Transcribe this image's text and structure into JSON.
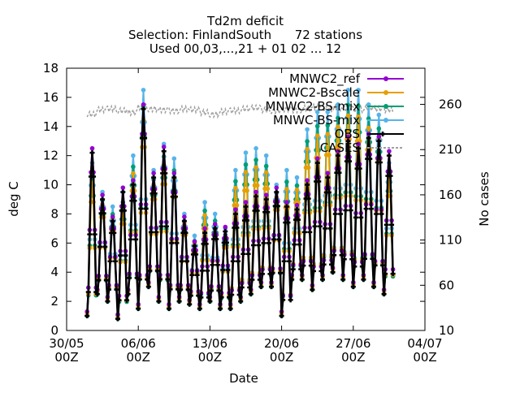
{
  "title_lines": [
    "Td2m deficit",
    "Selection: FinlandSouth      72 stations",
    "Used 00,03,...,21 + 01 02 ... 12"
  ],
  "chart_data": {
    "type": "line",
    "title": "Td2m deficit",
    "xlabel": "Date",
    "ylabel": "deg C",
    "y2label": "No cases",
    "xlim": [
      "2024-05-30T00:00",
      "2024-07-04T00:00"
    ],
    "ylim": [
      0,
      18
    ],
    "y2lim": [
      10,
      300
    ],
    "x_ticks": [
      {
        "value": "2024-05-30T00:00",
        "line1": "30/05",
        "line2": "00Z"
      },
      {
        "value": "2024-06-06T00:00",
        "line1": "06/06",
        "line2": "00Z"
      },
      {
        "value": "2024-06-13T00:00",
        "line1": "13/06",
        "line2": "00Z"
      },
      {
        "value": "2024-06-20T00:00",
        "line1": "20/06",
        "line2": "00Z"
      },
      {
        "value": "2024-06-27T00:00",
        "line1": "27/06",
        "line2": "00Z"
      },
      {
        "value": "2024-07-04T00:00",
        "line1": "04/07",
        "line2": "00Z"
      }
    ],
    "y_ticks": [
      0,
      2,
      4,
      6,
      8,
      10,
      12,
      14,
      16,
      18
    ],
    "y2_ticks": [
      10,
      60,
      110,
      160,
      210,
      260
    ],
    "legend_position": "top-right",
    "grid": false,
    "daily_series": {
      "dates": [
        "2024-06-01",
        "2024-06-02",
        "2024-06-03",
        "2024-06-04",
        "2024-06-05",
        "2024-06-06",
        "2024-06-07",
        "2024-06-08",
        "2024-06-09",
        "2024-06-10",
        "2024-06-11",
        "2024-06-12",
        "2024-06-13",
        "2024-06-14",
        "2024-06-15",
        "2024-06-16",
        "2024-06-17",
        "2024-06-18",
        "2024-06-19",
        "2024-06-20",
        "2024-06-21",
        "2024-06-22",
        "2024-06-23",
        "2024-06-24",
        "2024-06-25",
        "2024-06-26",
        "2024-06-27",
        "2024-06-28",
        "2024-06-29",
        "2024-06-30"
      ],
      "obs_daily_max": [
        12.2,
        9.0,
        7.5,
        9.5,
        10.0,
        15.2,
        10.5,
        12.3,
        10.5,
        7.5,
        5.8,
        6.7,
        7.0,
        6.8,
        8.0,
        8.5,
        9.2,
        9.0,
        9.5,
        8.5,
        8.3,
        10.0,
        11.5,
        10.5,
        12.0,
        13.0,
        12.5,
        13.2,
        13.0,
        12.0
      ],
      "obs_daily_min": [
        1.0,
        2.5,
        2.0,
        0.8,
        2.5,
        1.5,
        3.0,
        2.0,
        1.5,
        2.0,
        1.8,
        1.5,
        2.0,
        1.5,
        1.5,
        2.0,
        2.5,
        3.0,
        3.0,
        1.0,
        3.5,
        3.5,
        2.8,
        3.5,
        4.0,
        3.5,
        3.0,
        3.5,
        3.0,
        2.5
      ],
      "mnwc2_bs_mix_daily_max": [
        11.5,
        9.5,
        8.5,
        9.5,
        12.0,
        16.5,
        11.0,
        12.8,
        11.8,
        8.0,
        6.5,
        8.8,
        8.0,
        7.0,
        11.0,
        12.2,
        12.5,
        12.0,
        10.0,
        11.0,
        10.5,
        13.8,
        15.0,
        15.0,
        15.5,
        16.5,
        16.5,
        15.5,
        14.8,
        11.5
      ],
      "no_cases_daily": [
        250,
        255,
        256,
        254,
        252,
        258,
        256,
        255,
        254,
        256,
        255,
        252,
        250,
        253,
        254,
        256,
        257,
        255,
        254,
        256,
        255,
        257,
        258,
        256,
        257,
        256,
        255,
        257,
        256,
        255
      ]
    },
    "series": [
      {
        "name": "MNWC2_ref",
        "color": "#9400d3",
        "axis": "y"
      },
      {
        "name": "MNWC2-Bscale",
        "color": "#e69f00",
        "axis": "y"
      },
      {
        "name": "MNWC2-BS-mix",
        "color": "#009e73",
        "axis": "y"
      },
      {
        "name": "MNWC-BS-mix",
        "color": "#56b4e9",
        "axis": "y"
      },
      {
        "name": "OBS",
        "color": "#000000",
        "axis": "y"
      },
      {
        "name": "CASES",
        "color": "#a0a0a0",
        "axis": "y2",
        "dashed": true
      }
    ]
  }
}
